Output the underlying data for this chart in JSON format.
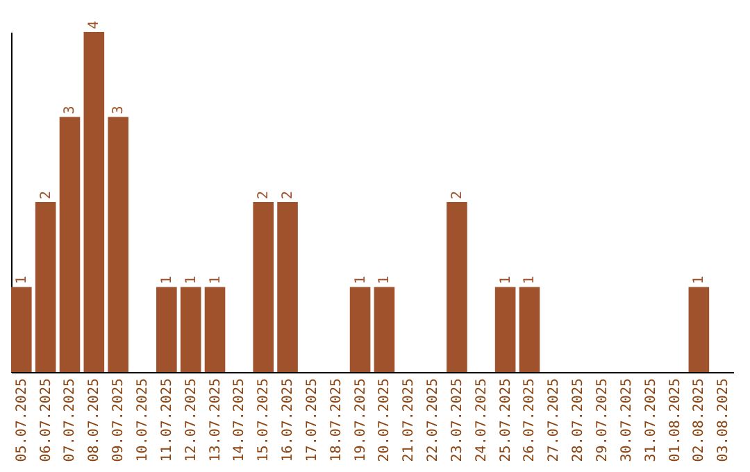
{
  "chart_data": {
    "type": "bar",
    "categories": [
      "05.07.2025",
      "06.07.2025",
      "07.07.2025",
      "08.07.2025",
      "09.07.2025",
      "10.07.2025",
      "11.07.2025",
      "12.07.2025",
      "13.07.2025",
      "14.07.2025",
      "15.07.2025",
      "16.07.2025",
      "17.07.2025",
      "18.07.2025",
      "19.07.2025",
      "20.07.2025",
      "21.07.2025",
      "22.07.2025",
      "23.07.2025",
      "24.07.2025",
      "25.07.2025",
      "26.07.2025",
      "27.07.2025",
      "28.07.2025",
      "29.07.2025",
      "30.07.2025",
      "31.07.2025",
      "01.08.2025",
      "02.08.2025",
      "03.08.2025"
    ],
    "values": [
      1,
      2,
      3,
      4,
      3,
      0,
      1,
      1,
      1,
      0,
      2,
      2,
      0,
      0,
      1,
      1,
      0,
      0,
      2,
      0,
      1,
      1,
      0,
      0,
      0,
      0,
      0,
      0,
      1,
      0
    ],
    "value_labels": [
      "1",
      "2",
      "3",
      "4",
      "3",
      null,
      "1",
      "1",
      "1",
      null,
      "2",
      "2",
      null,
      null,
      "1",
      "1",
      null,
      null,
      "2",
      null,
      "1",
      "1",
      null,
      null,
      null,
      null,
      null,
      null,
      "1",
      null
    ],
    "color": "#a0522d",
    "tick_labels": "x",
    "grid": false
  }
}
